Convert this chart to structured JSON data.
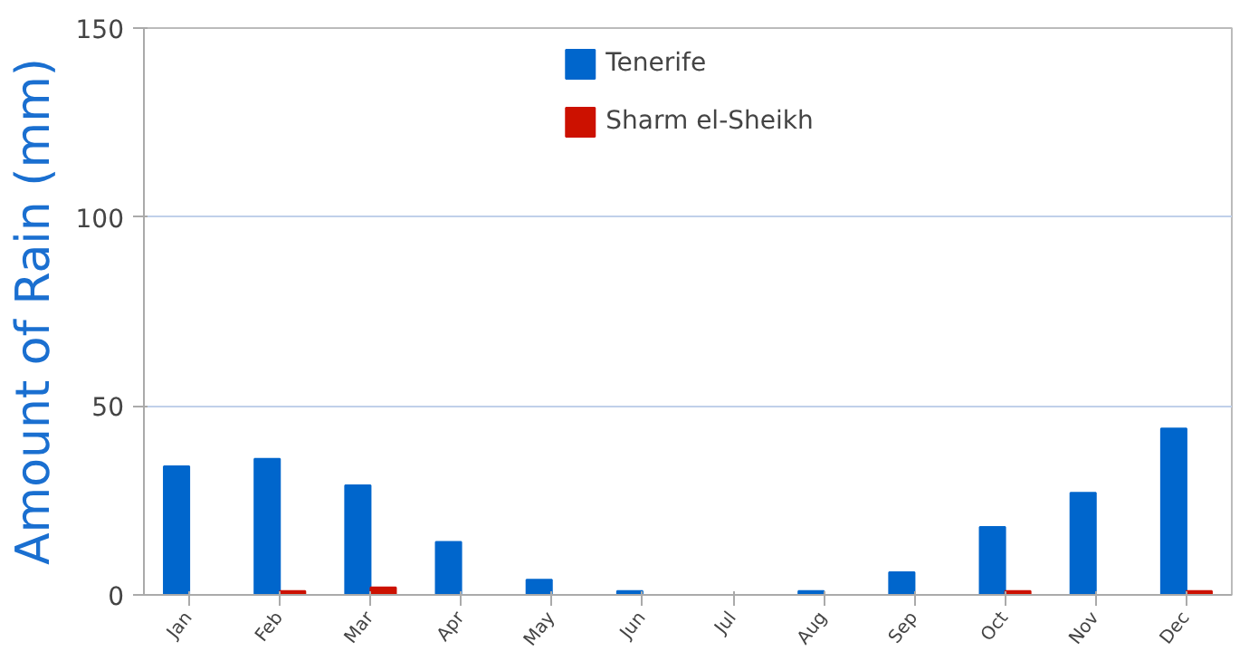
{
  "chart_data": {
    "type": "bar",
    "ylabel": "Amount of Rain (mm)",
    "categories": [
      "Jan",
      "Feb",
      "Mar",
      "Apr",
      "May",
      "Jun",
      "Jul",
      "Aug",
      "Sep",
      "Oct",
      "Nov",
      "Dec"
    ],
    "series": [
      {
        "name": "Tenerife",
        "color": "#0066cc",
        "values": [
          34,
          36,
          29,
          14,
          4,
          1,
          0,
          1,
          6,
          18,
          27,
          44
        ]
      },
      {
        "name": "Sharm el-Sheikh",
        "color": "#cc1100",
        "values": [
          0,
          1,
          2,
          0,
          0,
          0,
          0,
          0,
          0,
          1,
          0,
          1
        ]
      }
    ],
    "ylim": [
      0,
      150
    ],
    "yticks": [
      0,
      50,
      100,
      150
    ],
    "grid": "y",
    "legend": "top"
  }
}
